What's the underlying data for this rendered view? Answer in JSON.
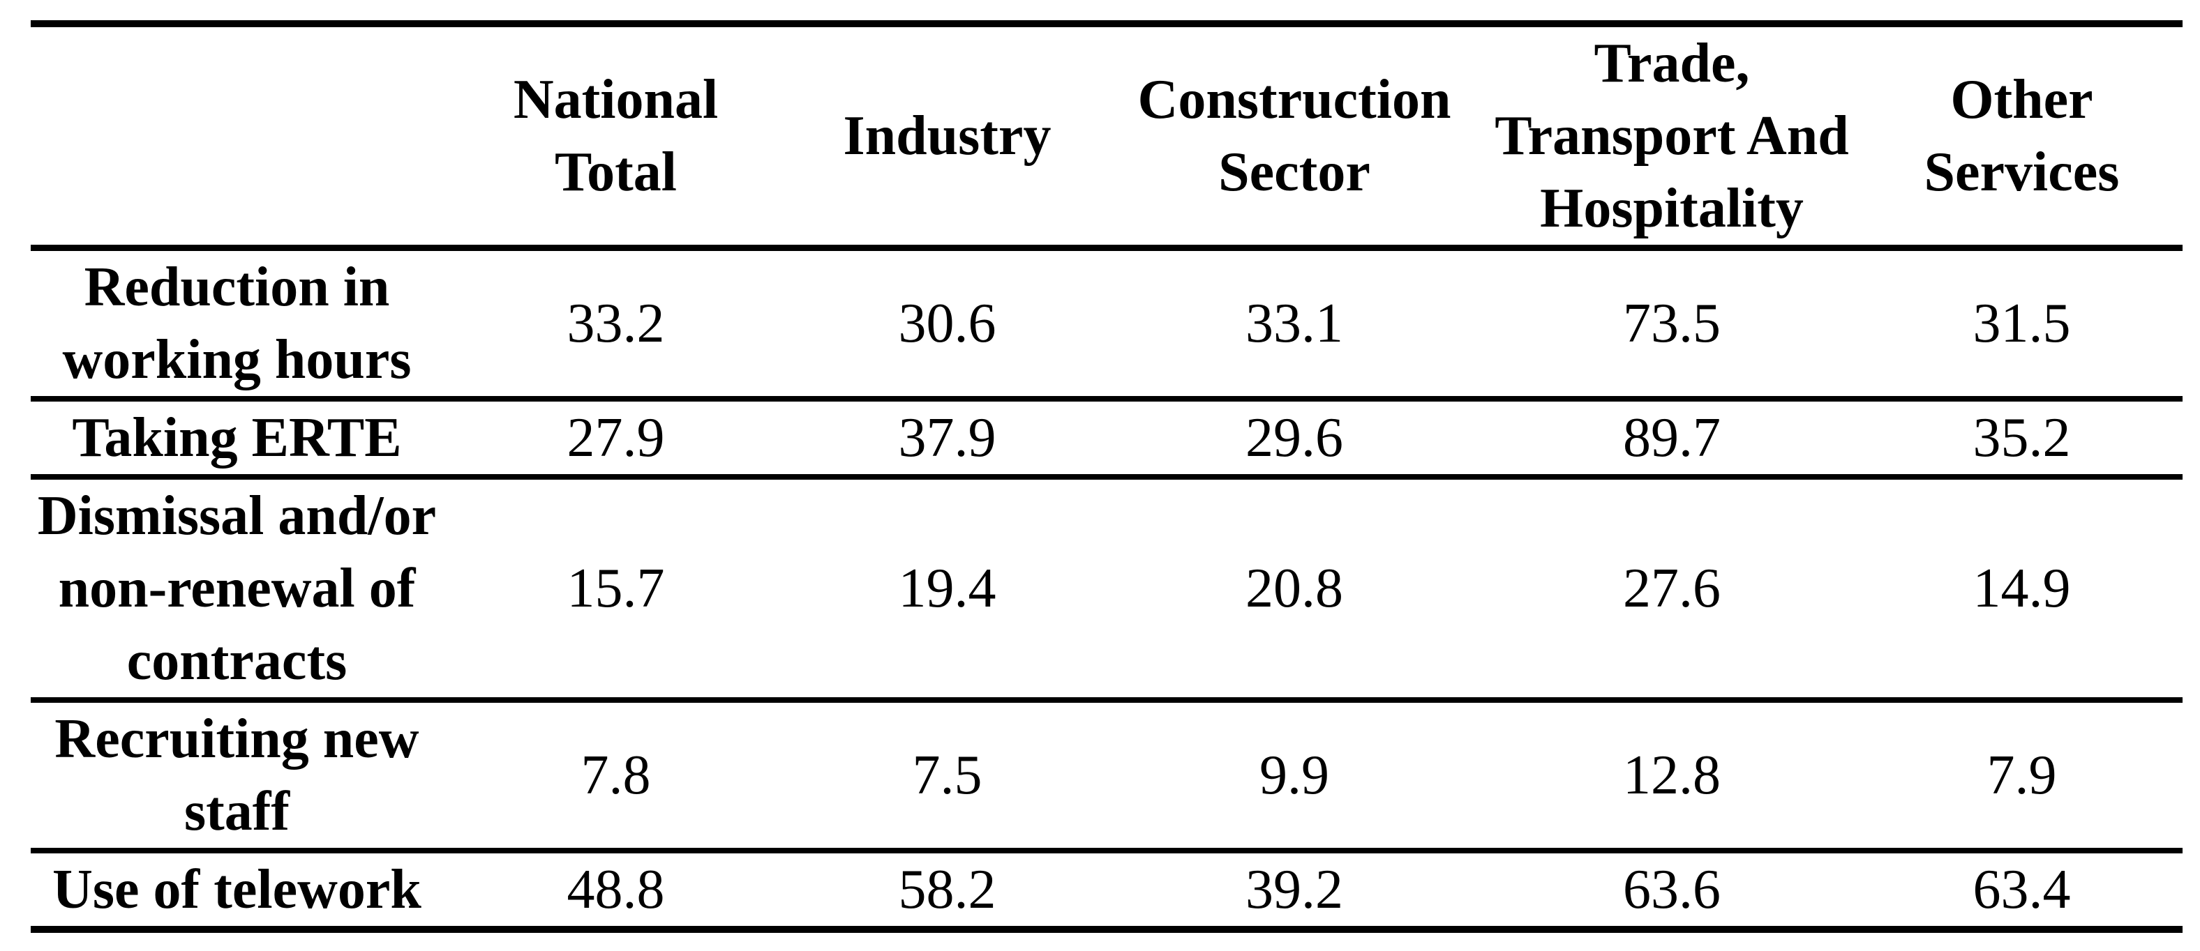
{
  "colors": {
    "background": "#ffffff",
    "text": "#000000",
    "rule": "#000000"
  },
  "table": {
    "corner_label": "",
    "columns": [
      "National\nTotal",
      "Industry",
      "Construction\nSector",
      "Trade,\nTransport And\nHospitality",
      "Other\nServices"
    ],
    "rows": [
      {
        "label": "Reduction in\nworking hours",
        "values": [
          "33.2",
          "30.6",
          "33.1",
          "73.5",
          "31.5"
        ]
      },
      {
        "label": "Taking ERTE",
        "values": [
          "27.9",
          "37.9",
          "29.6",
          "89.7",
          "35.2"
        ]
      },
      {
        "label": "Dismissal and/or\nnon-renewal of\ncontracts",
        "values": [
          "15.7",
          "19.4",
          "20.8",
          "27.6",
          "14.9"
        ]
      },
      {
        "label": "Recruiting new\nstaff",
        "values": [
          "7.8",
          "7.5",
          "9.9",
          "12.8",
          "7.9"
        ]
      },
      {
        "label": "Use of telework",
        "values": [
          "48.8",
          "58.2",
          "39.2",
          "63.6",
          "63.4"
        ]
      }
    ]
  },
  "chart_data": {
    "type": "table",
    "columns": [
      "National Total",
      "Industry",
      "Construction Sector",
      "Trade, Transport And Hospitality",
      "Other Services"
    ],
    "row_labels": [
      "Reduction in working hours",
      "Taking ERTE",
      "Dismissal and/or non-renewal of contracts",
      "Recruiting new staff",
      "Use of telework"
    ],
    "values": [
      [
        33.2,
        30.6,
        33.1,
        73.5,
        31.5
      ],
      [
        27.9,
        37.9,
        29.6,
        89.7,
        35.2
      ],
      [
        15.7,
        19.4,
        20.8,
        27.6,
        14.9
      ],
      [
        7.8,
        7.5,
        9.9,
        12.8,
        7.9
      ],
      [
        48.8,
        58.2,
        39.2,
        63.6,
        63.4
      ]
    ]
  }
}
